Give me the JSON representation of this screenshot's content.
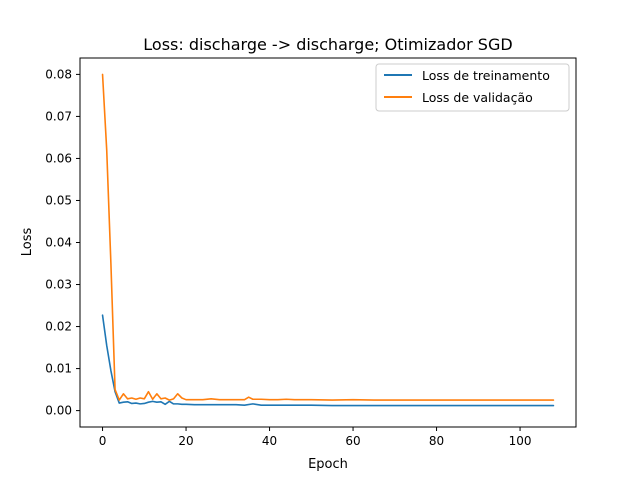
{
  "chart_data": {
    "type": "line",
    "title": "Loss: discharge -> discharge; Otimizador SGD",
    "xlabel": "Epoch",
    "ylabel": "Loss",
    "xlim": [
      -5.4,
      113.4
    ],
    "ylim": [
      -0.0039,
      0.0839
    ],
    "x_ticks": [
      0,
      20,
      40,
      60,
      80,
      100
    ],
    "x_tick_labels": [
      "0",
      "20",
      "40",
      "60",
      "80",
      "100"
    ],
    "y_ticks": [
      0.0,
      0.01,
      0.02,
      0.03,
      0.04,
      0.05,
      0.06,
      0.07,
      0.08
    ],
    "y_tick_labels": [
      "0.00",
      "0.01",
      "0.02",
      "0.03",
      "0.04",
      "0.05",
      "0.06",
      "0.07",
      "0.08"
    ],
    "grid": false,
    "legend_position": "top-right",
    "series": [
      {
        "name": "Loss de treinamento",
        "color": "#1f77b4",
        "x": [
          0,
          1,
          2,
          3,
          4,
          5,
          6,
          7,
          8,
          9,
          10,
          11,
          12,
          13,
          14,
          15,
          16,
          17,
          18,
          19,
          20,
          22,
          24,
          26,
          28,
          30,
          32,
          34,
          36,
          38,
          40,
          45,
          50,
          55,
          60,
          65,
          70,
          75,
          80,
          85,
          90,
          95,
          100,
          105,
          108
        ],
        "y": [
          0.0227,
          0.0155,
          0.0095,
          0.0045,
          0.0018,
          0.002,
          0.0021,
          0.0017,
          0.0018,
          0.0016,
          0.0017,
          0.002,
          0.0022,
          0.002,
          0.0021,
          0.0015,
          0.0022,
          0.0016,
          0.0016,
          0.0015,
          0.0015,
          0.0014,
          0.0014,
          0.0014,
          0.0014,
          0.0014,
          0.0014,
          0.0013,
          0.0016,
          0.0013,
          0.0013,
          0.0013,
          0.0013,
          0.0012,
          0.0012,
          0.0012,
          0.0012,
          0.0012,
          0.0012,
          0.0012,
          0.0012,
          0.0012,
          0.0012,
          0.0012,
          0.0012
        ]
      },
      {
        "name": "Loss de validação",
        "color": "#ff7f0e",
        "x": [
          0,
          1,
          2,
          3,
          4,
          5,
          6,
          7,
          8,
          9,
          10,
          11,
          12,
          13,
          14,
          15,
          16,
          17,
          18,
          19,
          20,
          22,
          24,
          26,
          28,
          30,
          32,
          34,
          35,
          36,
          38,
          40,
          42,
          44,
          46,
          48,
          50,
          55,
          60,
          65,
          70,
          75,
          80,
          85,
          90,
          95,
          100,
          105,
          108
        ],
        "y": [
          0.08,
          0.062,
          0.035,
          0.005,
          0.0025,
          0.004,
          0.0028,
          0.003,
          0.0027,
          0.003,
          0.0028,
          0.0045,
          0.0027,
          0.004,
          0.0028,
          0.003,
          0.0025,
          0.0028,
          0.004,
          0.003,
          0.0026,
          0.0026,
          0.0026,
          0.0028,
          0.0026,
          0.0026,
          0.0026,
          0.0026,
          0.0032,
          0.0027,
          0.0027,
          0.0026,
          0.0026,
          0.0027,
          0.0026,
          0.0026,
          0.0026,
          0.0025,
          0.0026,
          0.0025,
          0.0025,
          0.0025,
          0.0025,
          0.0025,
          0.0025,
          0.0025,
          0.0025,
          0.0025,
          0.0025
        ]
      }
    ]
  }
}
